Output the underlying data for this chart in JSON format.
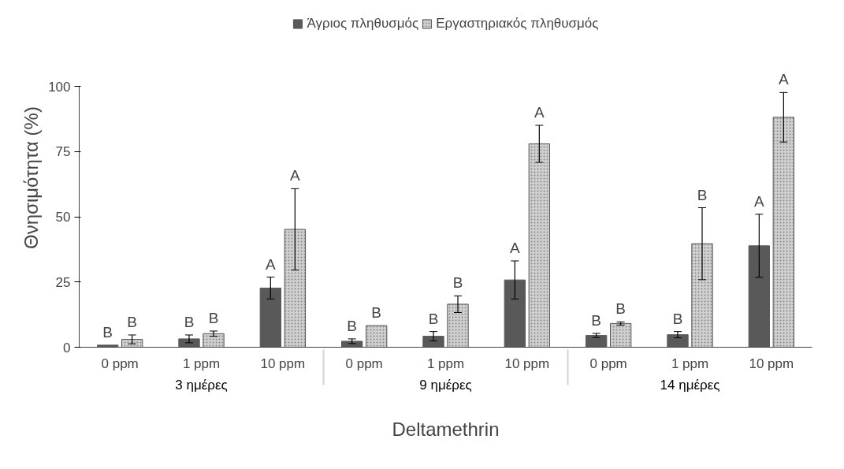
{
  "chart_data": {
    "type": "bar",
    "xlabel": "Deltamethrin",
    "ylabel": "Θνησιμότητα (%)",
    "categories": [
      "0 ppm",
      "1 ppm",
      "10 ppm",
      "0 ppm",
      "1 ppm",
      "10 ppm",
      "0 ppm",
      "1 ppm",
      "10 ppm"
    ],
    "annotations": [
      "3 ημέρες",
      "9 ημέρες",
      "14 ημέρες"
    ],
    "series": [
      {
        "name": "Άγριος πληθυσμός",
        "color": "#595959",
        "values": [
          0.8,
          3.2,
          22.7,
          2.3,
          4.2,
          25.8,
          4.5,
          4.8,
          38.9
        ],
        "errors": [
          null,
          1.5,
          4.2,
          0.9,
          1.8,
          7.3,
          0.8,
          1.2,
          12.1
        ],
        "value_labels": [
          "B",
          "B",
          "A",
          "B",
          "B",
          "A",
          "B",
          "B",
          "A"
        ]
      },
      {
        "name": "Εργαστηριακός πληθυσμός",
        "color": "#d0d0d0",
        "values": [
          3.0,
          5.2,
          45.2,
          8.3,
          16.5,
          78.0,
          9.1,
          39.7,
          88.2
        ],
        "errors": [
          1.7,
          1.0,
          15.6,
          null,
          3.2,
          7.1,
          0.6,
          13.8,
          9.5
        ],
        "value_labels": [
          "B",
          "B",
          "A",
          "B",
          "B",
          "A",
          "B",
          "B",
          "A"
        ]
      }
    ],
    "ylim": [
      0,
      100
    ],
    "yticks": [
      0,
      25,
      50,
      75,
      100
    ],
    "grid": false,
    "legend": "top"
  }
}
